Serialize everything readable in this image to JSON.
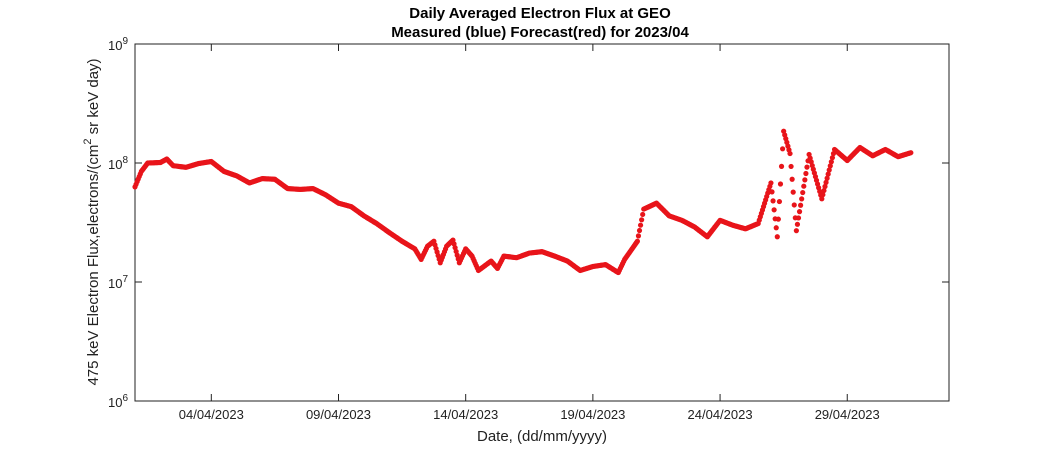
{
  "chart_data": {
    "type": "scatter",
    "title": "Daily Averaged Electron Flux at GEO",
    "subtitle": "Measured (blue) Forecast(red) for 2023/04",
    "xlabel": "Date, (dd/mm/yyyy)",
    "ylabel": "475 keV Electron Flux,electrons/(cm^2 sr keV day)",
    "ylabel_parts": [
      "475 keV Electron Flux,electrons/(cm",
      "2",
      " sr keV day)"
    ],
    "y_scale": "log",
    "xlim": [
      "2023-04-01",
      "2023-05-03"
    ],
    "ylim": [
      1000000,
      1000000000
    ],
    "x_ticks": [
      "04/04/2023",
      "09/04/2023",
      "14/04/2023",
      "19/04/2023",
      "24/04/2023",
      "29/04/2023"
    ],
    "y_ticks": [
      {
        "base": "10",
        "exp": "6"
      },
      {
        "base": "10",
        "exp": "7"
      },
      {
        "base": "10",
        "exp": "8"
      },
      {
        "base": "10",
        "exp": "9"
      }
    ],
    "grid": false,
    "series": [
      {
        "name": "Forecast",
        "color": "#e8141a",
        "points": [
          [
            "2023-04-01T00:00",
            63000000.0
          ],
          [
            "2023-04-01T06:00",
            85000000.0
          ],
          [
            "2023-04-01T12:00",
            100000000.0
          ],
          [
            "2023-04-02T00:00",
            101000000.0
          ],
          [
            "2023-04-02T06:00",
            108000000.0
          ],
          [
            "2023-04-02T12:00",
            95000000.0
          ],
          [
            "2023-04-03T00:00",
            92000000.0
          ],
          [
            "2023-04-03T12:00",
            99000000.0
          ],
          [
            "2023-04-04T00:00",
            103000000.0
          ],
          [
            "2023-04-04T12:00",
            85000000.0
          ],
          [
            "2023-04-05T00:00",
            78000000.0
          ],
          [
            "2023-04-05T12:00",
            68000000.0
          ],
          [
            "2023-04-06T00:00",
            74000000.0
          ],
          [
            "2023-04-06T12:00",
            73000000.0
          ],
          [
            "2023-04-07T00:00",
            61000000.0
          ],
          [
            "2023-04-07T12:00",
            60000000.0
          ],
          [
            "2023-04-08T00:00",
            61000000.0
          ],
          [
            "2023-04-08T12:00",
            54000000.0
          ],
          [
            "2023-04-09T00:00",
            46000000.0
          ],
          [
            "2023-04-09T12:00",
            43000000.0
          ],
          [
            "2023-04-10T00:00",
            36000000.0
          ],
          [
            "2023-04-10T12:00",
            31000000.0
          ],
          [
            "2023-04-11T00:00",
            26000000.0
          ],
          [
            "2023-04-11T12:00",
            22000000.0
          ],
          [
            "2023-04-12T00:00",
            19000000.0
          ],
          [
            "2023-04-12T06:00",
            15500000.0
          ],
          [
            "2023-04-12T12:00",
            20000000.0
          ],
          [
            "2023-04-12T18:00",
            22000000.0
          ],
          [
            "2023-04-13T00:00",
            14500000.0
          ],
          [
            "2023-04-13T06:00",
            20000000.0
          ],
          [
            "2023-04-13T12:00",
            22500000.0
          ],
          [
            "2023-04-13T18:00",
            14500000.0
          ],
          [
            "2023-04-14T00:00",
            19000000.0
          ],
          [
            "2023-04-14T06:00",
            16500000.0
          ],
          [
            "2023-04-14T12:00",
            12500000.0
          ],
          [
            "2023-04-15T00:00",
            15000000.0
          ],
          [
            "2023-04-15T06:00",
            13000000.0
          ],
          [
            "2023-04-15T12:00",
            16500000.0
          ],
          [
            "2023-04-16T00:00",
            16000000.0
          ],
          [
            "2023-04-16T12:00",
            17500000.0
          ],
          [
            "2023-04-17T00:00",
            18000000.0
          ],
          [
            "2023-04-17T12:00",
            16500000.0
          ],
          [
            "2023-04-18T00:00",
            15000000.0
          ],
          [
            "2023-04-18T12:00",
            12500000.0
          ],
          [
            "2023-04-19T00:00",
            13500000.0
          ],
          [
            "2023-04-19T12:00",
            14000000.0
          ],
          [
            "2023-04-20T00:00",
            12000000.0
          ],
          [
            "2023-04-20T06:00",
            15500000.0
          ],
          [
            "2023-04-20T18:00",
            22000000.0
          ],
          [
            "2023-04-21T00:00",
            41000000.0
          ],
          [
            "2023-04-21T12:00",
            46000000.0
          ],
          [
            "2023-04-22T00:00",
            36000000.0
          ],
          [
            "2023-04-22T12:00",
            33000000.0
          ],
          [
            "2023-04-23T00:00",
            29000000.0
          ],
          [
            "2023-04-23T12:00",
            24000000.0
          ],
          [
            "2023-04-24T00:00",
            33000000.0
          ],
          [
            "2023-04-24T12:00",
            30000000.0
          ],
          [
            "2023-04-25T00:00",
            28000000.0
          ],
          [
            "2023-04-25T12:00",
            31000000.0
          ],
          [
            "2023-04-26T00:00",
            68000000.0
          ],
          [
            "2023-04-26T06:00",
            24000000.0
          ],
          [
            "2023-04-26T12:00",
            185000000.0
          ],
          [
            "2023-04-26T18:00",
            120000000.0
          ],
          [
            "2023-04-27T00:00",
            27000000.0
          ],
          [
            "2023-04-27T12:00",
            118000000.0
          ],
          [
            "2023-04-28T00:00",
            50000000.0
          ],
          [
            "2023-04-28T12:00",
            130000000.0
          ],
          [
            "2023-04-29T00:00",
            105000000.0
          ],
          [
            "2023-04-29T12:00",
            135000000.0
          ],
          [
            "2023-04-30T00:00",
            115000000.0
          ],
          [
            "2023-04-30T12:00",
            130000000.0
          ],
          [
            "2023-05-01T00:00",
            113000000.0
          ],
          [
            "2023-05-01T12:00",
            122000000.0
          ]
        ]
      }
    ]
  }
}
